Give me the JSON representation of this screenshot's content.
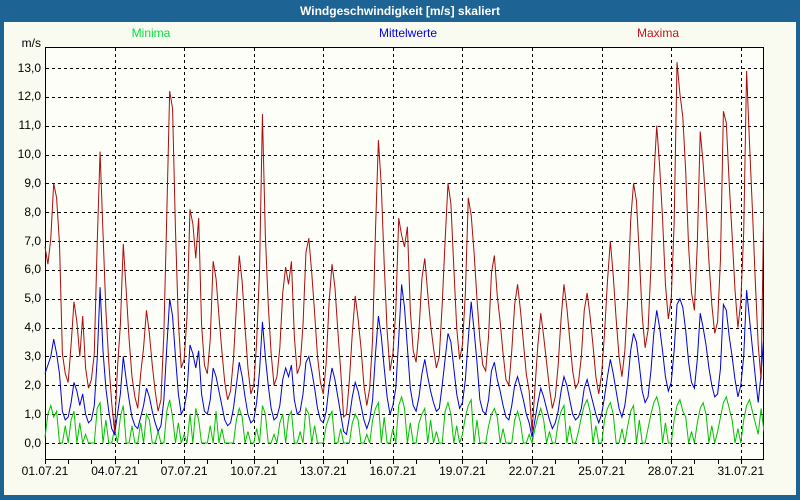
{
  "window": {
    "title": "Windgeschwindigkeit [m/s] skaliert"
  },
  "colors": {
    "frame": "#1d6394",
    "background": "#fafbf0",
    "plot_background": "#fefef8",
    "grid": "#000000",
    "axis_text": "#000000",
    "minima_line": "#00c000",
    "mittelwerte_line": "#0000d8",
    "maxima_line": "#aa0d0d",
    "minima_label": "#00e040",
    "mittelwerte_label": "#0000e0",
    "maxima_label": "#c01420"
  },
  "chart_data": {
    "type": "line",
    "title": "Windgeschwindigkeit [m/s] skaliert",
    "ylabel": "m/s",
    "xlabel": "",
    "ylim": [
      0,
      13
    ],
    "y_tick_step": 1.0,
    "y_tick_labels": [
      "0,0",
      "1,0",
      "2,0",
      "3,0",
      "4,0",
      "5,0",
      "6,0",
      "7,0",
      "8,0",
      "9,0",
      "10,0",
      "11,0",
      "12,0",
      "13,0"
    ],
    "x_tick_labels": [
      "01.07.21",
      "04.07.21",
      "07.07.21",
      "10.07.21",
      "13.07.21",
      "16.07.21",
      "19.07.21",
      "22.07.21",
      "25.07.21",
      "28.07.21",
      "31.07.21"
    ],
    "x_days_total": 31,
    "x_gridline_every_days": 3,
    "x_minor_tick_every_days": 1,
    "samples_per_day": 8,
    "grid": "dashed",
    "legend_position": "top",
    "series": [
      {
        "name": "Minima",
        "color_key": "minima",
        "values": [
          0.2,
          1.0,
          1.3,
          0.9,
          1.1,
          0.0,
          0.0,
          0.6,
          0.0,
          0.8,
          1.1,
          0.0,
          0.7,
          0.0,
          0.3,
          0.0,
          0.0,
          0.0,
          1.2,
          1.4,
          0.0,
          0.8,
          0.0,
          0.0,
          0.5,
          0.0,
          0.9,
          1.3,
          0.0,
          0.0,
          0.6,
          0.0,
          0.0,
          0.7,
          0.0,
          1.0,
          0.8,
          0.0,
          0.0,
          0.4,
          0.0,
          0.0,
          1.1,
          1.5,
          0.9,
          0.0,
          0.7,
          0.0,
          0.3,
          0.0,
          1.0,
          0.0,
          1.2,
          0.8,
          0.0,
          0.0,
          0.0,
          0.6,
          0.0,
          1.1,
          0.0,
          0.5,
          0.0,
          0.0,
          0.0,
          0.0,
          0.8,
          1.2,
          0.9,
          0.0,
          0.4,
          0.0,
          0.0,
          0.5,
          0.0,
          1.3,
          1.0,
          0.0,
          0.0,
          0.3,
          0.0,
          0.7,
          1.0,
          0.0,
          0.9,
          1.1,
          0.0,
          0.0,
          0.4,
          0.0,
          1.2,
          1.0,
          0.0,
          0.6,
          0.0,
          0.0,
          0.0,
          0.6,
          0.9,
          1.1,
          0.0,
          0.0,
          0.5,
          0.0,
          0.0,
          0.0,
          0.7,
          1.0,
          0.8,
          0.0,
          0.0,
          0.3,
          0.0,
          0.8,
          1.2,
          1.4,
          0.0,
          0.9,
          0.0,
          0.0,
          0.5,
          0.0,
          1.3,
          1.6,
          1.2,
          0.0,
          0.7,
          0.0,
          0.0,
          0.7,
          1.0,
          1.2,
          0.0,
          0.8,
          0.0,
          0.4,
          0.0,
          0.0,
          1.1,
          1.4,
          1.0,
          0.0,
          0.6,
          0.0,
          0.3,
          0.9,
          1.3,
          1.5,
          0.0,
          0.8,
          0.0,
          0.0,
          0.0,
          0.6,
          1.0,
          1.2,
          0.9,
          0.0,
          0.5,
          0.0,
          0.0,
          0.0,
          0.8,
          1.1,
          0.7,
          0.0,
          0.0,
          0.3,
          0.0,
          0.5,
          0.9,
          1.2,
          0.8,
          0.0,
          0.4,
          0.0,
          0.0,
          0.7,
          1.1,
          1.3,
          0.0,
          0.6,
          0.0,
          0.0,
          0.4,
          0.9,
          1.3,
          1.5,
          1.1,
          0.0,
          0.6,
          0.0,
          0.0,
          0.8,
          1.2,
          1.4,
          1.0,
          0.0,
          0.0,
          0.5,
          0.0,
          0.6,
          1.1,
          1.3,
          0.0,
          0.8,
          0.0,
          0.0,
          0.5,
          1.0,
          1.4,
          1.6,
          1.2,
          0.0,
          0.7,
          0.0,
          0.0,
          0.8,
          1.3,
          1.5,
          1.1,
          0.9,
          0.0,
          0.4,
          0.0,
          0.7,
          1.2,
          1.4,
          1.0,
          0.0,
          0.6,
          0.0,
          0.4,
          0.9,
          1.4,
          1.6,
          1.2,
          0.8,
          0.0,
          0.5,
          0.0,
          0.8,
          1.3,
          1.5,
          1.1,
          0.7,
          0.3,
          1.2,
          0.4
        ]
      },
      {
        "name": "Mittelwerte",
        "color_key": "mittelwerte",
        "values": [
          2.4,
          2.7,
          3.0,
          3.6,
          3.1,
          2.4,
          1.1,
          0.8,
          0.9,
          1.4,
          2.1,
          1.8,
          1.3,
          1.7,
          1.0,
          0.7,
          0.8,
          1.3,
          2.9,
          5.4,
          3.2,
          1.9,
          1.1,
          0.5,
          0.3,
          1.0,
          1.7,
          3.0,
          2.2,
          1.5,
          0.9,
          0.6,
          0.5,
          0.9,
          1.3,
          1.9,
          1.6,
          1.1,
          0.7,
          0.4,
          0.6,
          1.5,
          3.3,
          5.0,
          4.4,
          3.0,
          1.7,
          1.0,
          1.2,
          1.8,
          3.4,
          3.1,
          2.6,
          3.2,
          1.7,
          1.1,
          1.0,
          1.5,
          2.6,
          2.3,
          1.8,
          1.3,
          0.8,
          0.6,
          0.7,
          1.2,
          2.0,
          2.8,
          2.3,
          1.6,
          1.0,
          0.7,
          0.8,
          1.4,
          2.5,
          4.2,
          3.0,
          2.0,
          1.2,
          0.8,
          0.9,
          1.3,
          2.2,
          2.6,
          2.3,
          2.7,
          1.5,
          1.0,
          1.1,
          1.7,
          2.8,
          3.0,
          2.5,
          1.9,
          1.2,
          0.8,
          0.7,
          1.1,
          2.0,
          2.6,
          2.2,
          1.6,
          1.0,
          0.4,
          0.3,
          0.9,
          1.6,
          2.1,
          1.8,
          1.3,
          0.8,
          0.5,
          0.8,
          1.5,
          3.1,
          4.4,
          3.7,
          2.6,
          1.6,
          1.0,
          1.3,
          1.9,
          3.6,
          5.5,
          4.7,
          3.3,
          1.9,
          1.3,
          1.1,
          1.6,
          2.4,
          2.9,
          2.3,
          1.8,
          1.4,
          1.1,
          1.2,
          2.0,
          2.9,
          3.8,
          3.5,
          2.6,
          1.7,
          1.2,
          1.4,
          2.2,
          3.6,
          4.9,
          3.9,
          2.8,
          1.5,
          1.1,
          1.0,
          1.5,
          2.5,
          2.8,
          2.2,
          1.8,
          1.3,
          0.9,
          0.8,
          1.3,
          2.0,
          2.3,
          1.9,
          1.5,
          1.0,
          0.7,
          0.2,
          0.8,
          1.4,
          1.9,
          1.6,
          1.2,
          0.8,
          0.5,
          0.7,
          1.1,
          1.8,
          2.3,
          2.0,
          1.5,
          1.0,
          0.8,
          0.9,
          1.2,
          1.9,
          2.2,
          1.8,
          1.4,
          1.0,
          0.7,
          1.0,
          1.6,
          2.3,
          2.9,
          2.4,
          1.8,
          1.2,
          0.9,
          1.3,
          2.1,
          3.2,
          3.8,
          3.5,
          2.7,
          1.8,
          1.4,
          1.6,
          2.5,
          3.8,
          4.6,
          4.0,
          3.2,
          2.3,
          1.8,
          2.1,
          3.2,
          4.8,
          5.0,
          4.7,
          3.9,
          2.8,
          2.1,
          1.9,
          2.9,
          4.5,
          4.0,
          3.4,
          2.6,
          2.0,
          1.6,
          1.7,
          2.6,
          4.8,
          4.6,
          3.7,
          3.0,
          2.2,
          1.6,
          2.0,
          3.0,
          5.3,
          4.3,
          3.3,
          2.3,
          1.4,
          2.4,
          3.8
        ]
      },
      {
        "name": "Maxima",
        "color_key": "maxima",
        "values": [
          6.8,
          6.2,
          7.1,
          9.0,
          8.5,
          6.9,
          3.1,
          2.4,
          2.1,
          3.4,
          4.9,
          4.2,
          3.0,
          4.4,
          2.6,
          1.9,
          2.2,
          3.1,
          6.9,
          10.1,
          7.3,
          4.6,
          2.8,
          1.4,
          0.4,
          2.6,
          4.1,
          6.9,
          5.3,
          3.6,
          2.3,
          1.6,
          1.2,
          2.4,
          3.3,
          4.6,
          3.8,
          2.7,
          1.8,
          1.1,
          1.5,
          3.8,
          7.9,
          12.2,
          11.6,
          7.4,
          4.2,
          2.6,
          2.9,
          4.4,
          8.1,
          7.6,
          6.4,
          7.8,
          4.1,
          2.7,
          2.4,
          3.6,
          6.3,
          5.7,
          4.4,
          3.2,
          2.1,
          1.5,
          1.8,
          2.9,
          4.7,
          6.5,
          5.6,
          4.0,
          2.6,
          1.7,
          2.0,
          3.5,
          6.0,
          11.4,
          7.2,
          4.8,
          3.1,
          2.0,
          2.3,
          3.3,
          5.2,
          6.1,
          5.5,
          6.3,
          3.7,
          2.4,
          2.7,
          4.1,
          6.6,
          7.1,
          5.9,
          4.5,
          3.0,
          2.1,
          1.7,
          2.8,
          4.9,
          6.2,
          5.4,
          3.9,
          2.5,
          0.9,
          1.0,
          2.2,
          3.8,
          5.1,
          4.3,
          3.3,
          2.0,
          1.3,
          1.9,
          3.6,
          7.4,
          10.5,
          8.9,
          6.2,
          3.9,
          2.5,
          3.1,
          4.6,
          7.8,
          7.2,
          6.8,
          7.5,
          4.6,
          3.2,
          2.8,
          3.9,
          5.7,
          6.4,
          5.2,
          4.1,
          3.3,
          2.6,
          3.0,
          4.8,
          7.0,
          9.0,
          8.3,
          6.1,
          4.0,
          2.9,
          3.4,
          5.2,
          8.5,
          7.9,
          6.6,
          5.0,
          3.6,
          2.7,
          2.5,
          3.7,
          5.9,
          6.5,
          5.1,
          4.2,
          3.1,
          2.2,
          2.0,
          3.2,
          4.8,
          5.5,
          4.6,
          3.5,
          2.4,
          1.8,
          0.4,
          1.9,
          3.4,
          4.5,
          3.7,
          2.8,
          1.9,
          1.2,
          1.6,
          2.7,
          4.3,
          5.5,
          4.7,
          3.6,
          2.5,
          1.9,
          2.1,
          3.0,
          4.6,
          5.2,
          4.4,
          3.4,
          2.3,
          1.7,
          2.4,
          3.8,
          5.6,
          7.0,
          5.8,
          4.3,
          3.0,
          2.3,
          3.2,
          5.0,
          7.7,
          9.0,
          8.4,
          6.5,
          4.4,
          3.3,
          3.9,
          6.1,
          9.2,
          11.0,
          9.6,
          7.8,
          5.5,
          4.3,
          5.0,
          7.6,
          13.2,
          12.1,
          11.3,
          9.4,
          6.8,
          5.2,
          4.6,
          6.9,
          10.8,
          9.7,
          8.2,
          6.3,
          4.8,
          3.8,
          4.2,
          6.4,
          11.5,
          11.1,
          9.0,
          7.2,
          5.3,
          4.0,
          4.9,
          7.3,
          12.9,
          10.4,
          8.1,
          5.6,
          3.4,
          2.2,
          8.8
        ]
      }
    ]
  }
}
